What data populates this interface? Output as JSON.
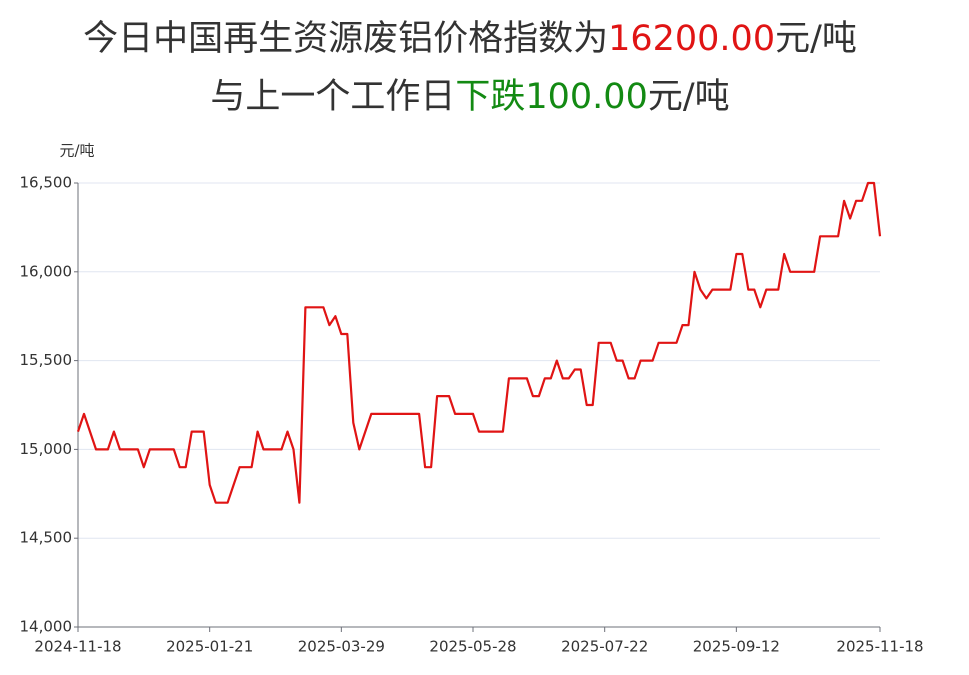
{
  "chart_data": {
    "type": "line",
    "title": [
      {
        "text": "今日中国再生资源废铝价格指数为",
        "color": "#333333"
      },
      {
        "text": "16200.00",
        "color": "#e01414"
      },
      {
        "text": "元/吨",
        "color": "#333333"
      }
    ],
    "subtitle": [
      {
        "text": "与上一个工作日",
        "color": "#333333"
      },
      {
        "text": "下跌",
        "color": "#138a13"
      },
      {
        "text": "100.00",
        "color": "#138a13"
      },
      {
        "text": "元/吨",
        "color": "#333333"
      }
    ],
    "y_label": "元/吨",
    "categories": [
      "2024-11-18",
      null,
      null,
      null,
      null,
      null,
      null,
      null,
      null,
      null,
      null,
      null,
      null,
      null,
      null,
      null,
      null,
      null,
      null,
      null,
      null,
      null,
      "2025-01-21",
      null,
      null,
      null,
      null,
      null,
      null,
      null,
      null,
      null,
      null,
      null,
      null,
      null,
      null,
      null,
      null,
      null,
      null,
      null,
      null,
      null,
      "2025-03-29",
      null,
      null,
      null,
      null,
      null,
      null,
      null,
      null,
      null,
      null,
      null,
      null,
      null,
      null,
      null,
      null,
      null,
      null,
      null,
      null,
      null,
      "2025-05-28",
      null,
      null,
      null,
      null,
      null,
      null,
      null,
      null,
      null,
      null,
      null,
      null,
      null,
      null,
      null,
      null,
      null,
      null,
      null,
      null,
      null,
      "2025-07-22",
      null,
      null,
      null,
      null,
      null,
      null,
      null,
      null,
      null,
      null,
      null,
      null,
      null,
      null,
      null,
      null,
      null,
      null,
      null,
      null,
      null,
      "2025-09-12",
      null,
      null,
      null,
      null,
      null,
      null,
      null,
      null,
      null,
      null,
      null,
      null,
      null,
      null,
      null,
      null,
      null,
      null,
      null,
      null,
      null,
      null,
      null,
      "2025-11-18"
    ],
    "series": [
      {
        "color": "#e01414",
        "values": [
          15100,
          15200,
          15100,
          15000,
          15000,
          15000,
          15100,
          15000,
          15000,
          15000,
          15000,
          14900,
          15000,
          15000,
          15000,
          15000,
          15000,
          14900,
          14900,
          15100,
          15100,
          15100,
          14800,
          14700,
          14700,
          14700,
          14800,
          14900,
          14900,
          14900,
          15100,
          15000,
          15000,
          15000,
          15000,
          15100,
          15000,
          14700,
          15800,
          15800,
          15800,
          15800,
          15700,
          15750,
          15650,
          15650,
          15150,
          15000,
          15100,
          15200,
          15200,
          15200,
          15200,
          15200,
          15200,
          15200,
          15200,
          15200,
          14900,
          14900,
          15300,
          15300,
          15300,
          15200,
          15200,
          15200,
          15200,
          15100,
          15100,
          15100,
          15100,
          15100,
          15400,
          15400,
          15400,
          15400,
          15300,
          15300,
          15400,
          15400,
          15500,
          15400,
          15400,
          15450,
          15450,
          15250,
          15250,
          15600,
          15600,
          15600,
          15500,
          15500,
          15400,
          15400,
          15500,
          15500,
          15500,
          15600,
          15600,
          15600,
          15600,
          15700,
          15700,
          16000,
          15900,
          15850,
          15900,
          15900,
          15900,
          15900,
          16100,
          16100,
          15900,
          15900,
          15800,
          15900,
          15900,
          15900,
          16100,
          16000,
          16000,
          16000,
          16000,
          16000,
          16200,
          16200,
          16200,
          16200,
          16400,
          16300,
          16400,
          16400,
          16500,
          16500,
          16200
        ]
      }
    ],
    "ylim": [
      14000,
      16500
    ],
    "yticks": [
      {
        "value": 14000,
        "label": "14,000"
      },
      {
        "value": 14500,
        "label": "14,500"
      },
      {
        "value": 15000,
        "label": "15,000"
      },
      {
        "value": 15500,
        "label": "15,500"
      },
      {
        "value": 16000,
        "label": "16,000"
      },
      {
        "value": 16500,
        "label": "16,500"
      }
    ],
    "grid": true
  }
}
